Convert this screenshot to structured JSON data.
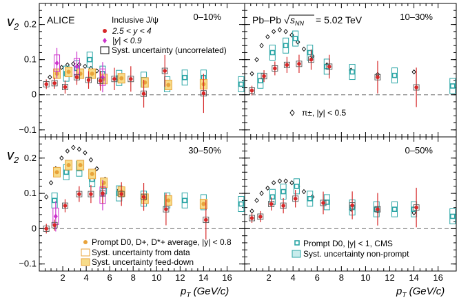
{
  "chart_data": {
    "type": "scatter",
    "title": "",
    "ylabel": "v2",
    "xlabel": "pT (GeV/c)",
    "xlim": [
      0,
      17.5
    ],
    "ylim": [
      -0.12,
      0.26
    ],
    "x_ticks": [
      "2",
      "4",
      "6",
      "8",
      "10",
      "12",
      "14",
      "16"
    ],
    "y_ticks": [
      "0.2",
      "0.1",
      "0",
      "−0.1"
    ],
    "y_tick_values": [
      0.2,
      0.1,
      0,
      -0.1
    ],
    "x_tick_values": [
      2,
      4,
      6,
      8,
      10,
      12,
      14,
      16
    ],
    "annotations": {
      "experiment": "ALICE",
      "collision": "Pb–Pb",
      "energy_label": "sNN",
      "energy_value": "= 5.02 TeV",
      "pion_label": "π±, |y| < 0.5"
    },
    "legend_jpsi": {
      "title": "Inclusive J/ψ",
      "forward": "2.5 < y < 4",
      "mid": "|y| < 0.9",
      "syst": "Syst. uncertainty (uncorrelated)"
    },
    "legend_d": {
      "prompt_d": "Prompt D0, D+, D*+ average, |y| < 0.8",
      "syst_data": "Syst. uncertainty from data",
      "syst_fd": "Syst. uncertainty feed-down"
    },
    "legend_cms": {
      "prompt_d0": "Prompt D0, |y| < 1, CMS",
      "syst_np": "Syst. uncertainty non-prompt"
    },
    "colors": {
      "jpsi_forward": "#d62728",
      "jpsi_mid": "#cc33cc",
      "d_alice": "#e8a33a",
      "cms": "#2aa5a5",
      "pion": "#000000"
    },
    "panels": [
      {
        "centrality": "0–10%",
        "jpsi_forward": [
          [
            0.6,
            0.03
          ],
          [
            1.3,
            0.033
          ],
          [
            2.2,
            0.022
          ],
          [
            3.2,
            0.05
          ],
          [
            4.2,
            0.042
          ],
          [
            5.2,
            0.04
          ],
          [
            6.4,
            0.045
          ],
          [
            7.8,
            0.045
          ],
          [
            8.9,
            0.003
          ],
          [
            10.7,
            0.068
          ],
          [
            14.0,
            0.004
          ]
        ],
        "jpsi_mid": [
          [
            1.5,
            0.09
          ],
          [
            3.2,
            0.08
          ],
          [
            5.4,
            0.05
          ]
        ],
        "d_alice": [
          [
            1.5,
            0.06
          ],
          [
            2.5,
            0.065
          ],
          [
            3.5,
            0.06
          ],
          [
            4.5,
            0.06
          ],
          [
            5.5,
            0.045
          ],
          [
            7.0,
            0.047
          ],
          [
            9.0,
            0.035
          ],
          [
            11.0,
            0.028
          ],
          [
            14.0,
            0.03
          ]
        ],
        "cms": [
          [
            2.3,
            0.06
          ],
          [
            3.2,
            0.075
          ],
          [
            4.3,
            0.1
          ],
          [
            5.4,
            0.06
          ],
          [
            6.8,
            0.048
          ],
          [
            8.9,
            0.043
          ],
          [
            10.9,
            0.03
          ],
          [
            12.4,
            0.049
          ],
          [
            14.0,
            0.049
          ],
          [
            17.2,
            0.03
          ]
        ],
        "pion": [
          [
            0.9,
            0.05
          ],
          [
            1.4,
            0.066
          ],
          [
            1.9,
            0.078
          ],
          [
            2.4,
            0.085
          ],
          [
            2.9,
            0.088
          ],
          [
            3.4,
            0.086
          ],
          [
            3.9,
            0.081
          ],
          [
            4.4,
            0.075
          ],
          [
            4.9,
            0.068
          ],
          [
            5.4,
            0.06
          ]
        ]
      },
      {
        "centrality": "10–30%",
        "jpsi_forward": [
          [
            0.6,
            0.012
          ],
          [
            1.6,
            0.053
          ],
          [
            2.5,
            0.075
          ],
          [
            3.5,
            0.085
          ],
          [
            4.5,
            0.088
          ],
          [
            5.5,
            0.1
          ],
          [
            7.0,
            0.08
          ],
          [
            11.0,
            0.05
          ],
          [
            14.2,
            0.021
          ]
        ],
        "cms": [
          [
            1.3,
            0.04
          ],
          [
            2.3,
            0.12
          ],
          [
            3.4,
            0.14
          ],
          [
            4.2,
            0.16
          ],
          [
            5.4,
            0.12
          ],
          [
            6.8,
            0.08
          ],
          [
            8.9,
            0.065
          ],
          [
            12.4,
            0.055
          ],
          [
            17.2,
            0.025
          ]
        ],
        "pion": [
          [
            0.6,
            0.06
          ],
          [
            1.0,
            0.1
          ],
          [
            1.4,
            0.14
          ],
          [
            1.9,
            0.165
          ],
          [
            2.4,
            0.18
          ],
          [
            2.9,
            0.185
          ],
          [
            3.4,
            0.18
          ],
          [
            3.9,
            0.17
          ],
          [
            4.4,
            0.15
          ],
          [
            4.9,
            0.13
          ],
          [
            5.6,
            0.11
          ],
          [
            6.8,
            0.085
          ],
          [
            8.8,
            0.07
          ],
          [
            11.0,
            0.058
          ],
          [
            14.0,
            0.065
          ]
        ]
      },
      {
        "centrality": "30–50%",
        "jpsi_forward": [
          [
            0.6,
            0.0
          ],
          [
            1.3,
            0.01
          ],
          [
            2.2,
            0.065
          ],
          [
            3.4,
            0.098
          ],
          [
            4.4,
            0.098
          ],
          [
            5.4,
            0.1
          ],
          [
            7.0,
            0.098
          ],
          [
            8.9,
            0.09
          ],
          [
            10.8,
            0.055
          ],
          [
            14.2,
            0.025
          ]
        ],
        "jpsi_mid": [
          [
            1.4,
            0.035
          ],
          [
            5.4,
            0.095
          ]
        ],
        "d_alice": [
          [
            1.5,
            0.16
          ],
          [
            2.5,
            0.18
          ],
          [
            3.5,
            0.18
          ],
          [
            4.5,
            0.155
          ],
          [
            5.5,
            0.13
          ],
          [
            7.0,
            0.105
          ],
          [
            9.0,
            0.085
          ],
          [
            11.0,
            0.08
          ],
          [
            14.0,
            0.07
          ]
        ],
        "cms": [
          [
            1.3,
            0.08
          ],
          [
            2.3,
            0.16
          ],
          [
            3.4,
            0.17
          ],
          [
            4.5,
            0.14
          ],
          [
            5.5,
            0.12
          ],
          [
            6.8,
            0.1
          ],
          [
            8.9,
            0.085
          ],
          [
            10.9,
            0.08
          ],
          [
            12.4,
            0.08
          ],
          [
            14.0,
            0.075
          ],
          [
            17.2,
            0.07
          ]
        ],
        "pion": [
          [
            0.6,
            0.09
          ],
          [
            1.0,
            0.13
          ],
          [
            1.4,
            0.17
          ],
          [
            1.9,
            0.2
          ],
          [
            2.4,
            0.22
          ],
          [
            2.9,
            0.23
          ],
          [
            3.4,
            0.225
          ],
          [
            3.9,
            0.215
          ],
          [
            4.4,
            0.195
          ],
          [
            4.9,
            0.17
          ],
          [
            5.6,
            0.14
          ],
          [
            6.8,
            0.11
          ],
          [
            8.8,
            0.085
          ],
          [
            11.0,
            0.08
          ],
          [
            14.0,
            0.075
          ]
        ]
      },
      {
        "centrality": "0–50%",
        "jpsi_forward": [
          [
            0.6,
            0.03
          ],
          [
            1.3,
            0.034
          ],
          [
            2.2,
            0.07
          ],
          [
            3.2,
            0.065
          ],
          [
            4.2,
            0.085
          ],
          [
            6.5,
            0.073
          ],
          [
            8.9,
            0.066
          ],
          [
            11.0,
            0.055
          ],
          [
            14.2,
            0.06
          ]
        ],
        "cms": [
          [
            2.3,
            0.09
          ],
          [
            3.2,
            0.105
          ],
          [
            4.3,
            0.12
          ],
          [
            5.4,
            0.085
          ],
          [
            6.8,
            0.075
          ],
          [
            8.9,
            0.06
          ],
          [
            10.9,
            0.055
          ],
          [
            12.4,
            0.055
          ],
          [
            14.0,
            0.055
          ],
          [
            17.2,
            0.035
          ]
        ],
        "pion": [
          [
            0.6,
            0.05
          ],
          [
            1.0,
            0.08
          ],
          [
            1.4,
            0.1
          ],
          [
            1.9,
            0.115
          ],
          [
            2.4,
            0.13
          ],
          [
            2.9,
            0.135
          ],
          [
            3.4,
            0.135
          ],
          [
            3.9,
            0.13
          ],
          [
            4.4,
            0.12
          ],
          [
            4.9,
            0.105
          ],
          [
            5.6,
            0.09
          ],
          [
            6.8,
            0.075
          ],
          [
            8.8,
            0.055
          ],
          [
            11.0,
            0.05
          ],
          [
            14.0,
            0.045
          ]
        ]
      }
    ]
  }
}
